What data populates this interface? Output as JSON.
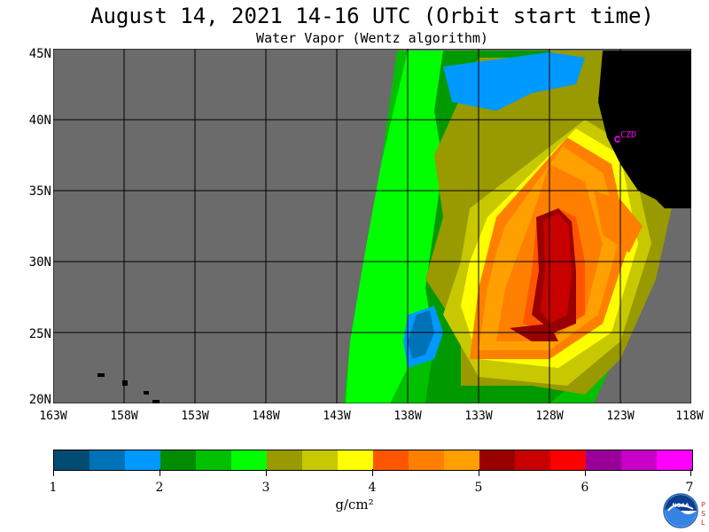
{
  "title": "August 14, 2021  14-16 UTC  (Orbit start time)",
  "subtitle": "Water Vapor (Wentz algorithm)",
  "map": {
    "latitude_labels": [
      "45N",
      "40N",
      "35N",
      "30N",
      "25N",
      "20N"
    ],
    "longitude_labels": [
      "163W",
      "158W",
      "153W",
      "148W",
      "143W",
      "138W",
      "133W",
      "128W",
      "123W",
      "118W"
    ],
    "station_label": "CZD",
    "colors": {
      "no_data": "#6b6b6b",
      "land": "#000000",
      "grid": "#000000",
      "station": "#ff00ff"
    }
  },
  "colorbar": {
    "labels": [
      "1",
      "2",
      "3",
      "4",
      "5",
      "6",
      "7"
    ],
    "unit": "g/cm²",
    "colors": [
      "#004c73",
      "#0073b8",
      "#0099ff",
      "#008c00",
      "#00c000",
      "#00ff00",
      "#999900",
      "#c8c800",
      "#ffff00",
      "#ff5500",
      "#ff8000",
      "#ffa000",
      "#990000",
      "#c80000",
      "#ff0000",
      "#990099",
      "#c800c8",
      "#ff00ff"
    ]
  },
  "logo": {
    "name": "NOAA",
    "side_letters": "PSL"
  }
}
